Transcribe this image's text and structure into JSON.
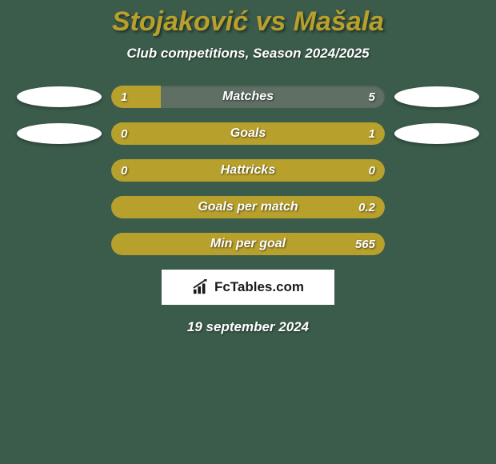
{
  "title": "Stojaković vs Mašala",
  "subtitle": "Club competitions, Season 2024/2025",
  "date": "19 september 2024",
  "logo_text": "FcTables.com",
  "colors": {
    "bg": "#3b5b4b",
    "accent": "#b8a02c",
    "bar_track": "#5f6f64",
    "text": "#ffffff",
    "oval": "#ffffff"
  },
  "stats": [
    {
      "label": "Matches",
      "left_val": "1",
      "right_val": "5",
      "fill_side": "left",
      "fill_pct": 18,
      "show_left_oval": true,
      "show_right_oval": true
    },
    {
      "label": "Goals",
      "left_val": "0",
      "right_val": "1",
      "fill_side": "right",
      "fill_pct": 100,
      "show_left_oval": true,
      "show_right_oval": true
    },
    {
      "label": "Hattricks",
      "left_val": "0",
      "right_val": "0",
      "fill_side": "full",
      "fill_pct": 100,
      "show_left_oval": false,
      "show_right_oval": false
    },
    {
      "label": "Goals per match",
      "left_val": "",
      "right_val": "0.2",
      "fill_side": "right",
      "fill_pct": 100,
      "show_left_oval": false,
      "show_right_oval": false
    },
    {
      "label": "Min per goal",
      "left_val": "",
      "right_val": "565",
      "fill_side": "right",
      "fill_pct": 100,
      "show_left_oval": false,
      "show_right_oval": false
    }
  ]
}
